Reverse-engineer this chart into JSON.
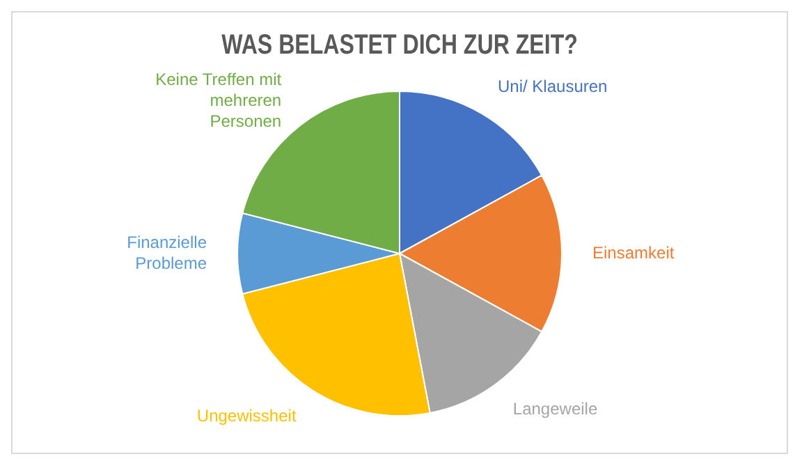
{
  "chart_data": {
    "type": "pie",
    "title": "WAS BELASTET DICH ZUR ZEIT?",
    "categories": [
      "Uni/ Klausuren",
      "Einsamkeit",
      "Langeweile",
      "Ungewissheit",
      "Finanzielle Probleme",
      "Keine Treffen mit mehreren Personen"
    ],
    "values": [
      17,
      16,
      14,
      24,
      8,
      21
    ],
    "colors": [
      "#4472c4",
      "#ed7d31",
      "#a5a5a5",
      "#ffc000",
      "#5b9bd5",
      "#70ad47"
    ],
    "legend": false
  }
}
